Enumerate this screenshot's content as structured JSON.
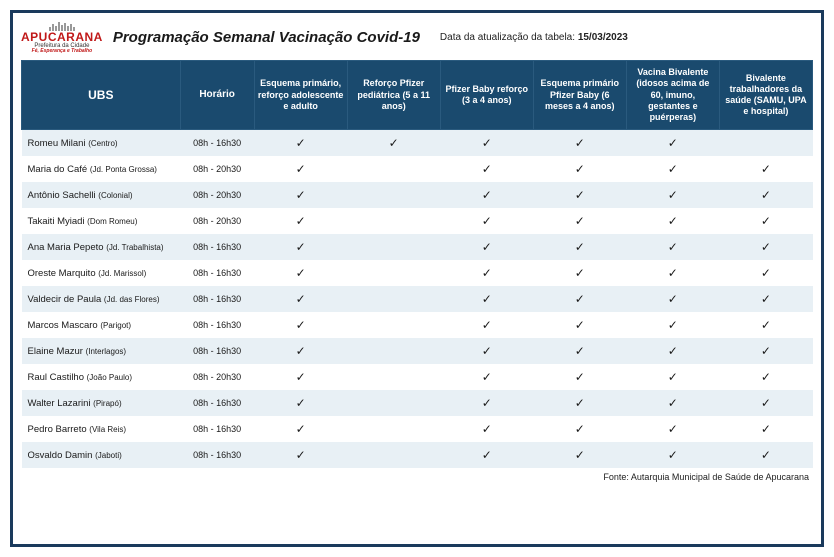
{
  "header": {
    "logo": {
      "city": "APUCARANA",
      "sub": "Prefeitura da Cidade",
      "motto": "Fé, Esperança e Trabalho"
    },
    "title": "Programação Semanal Vacinação Covid-19",
    "update_label": "Data da atualização da tabela: ",
    "update_date": "15/03/2023"
  },
  "table": {
    "columns": [
      "UBS",
      "Horário",
      "Esquema primário, reforço adolescente e adulto",
      "Reforço Pfizer pediátrica        (5 a 11 anos)",
      "Pfizer Baby reforço (3 a 4 anos)",
      "Esquema primário Pfizer Baby (6 meses a 4 anos)",
      "Vacina Bivalente (idosos acima de 60, imuno, gestantes e puérperas)",
      "Bivalente trabalhadores da saúde (SAMU, UPA e hospital)"
    ],
    "rows": [
      {
        "ubs": "Romeu Milani",
        "loc": "(Centro)",
        "horario": "08h - 16h30",
        "v": [
          true,
          true,
          true,
          true,
          true,
          false
        ]
      },
      {
        "ubs": "Maria do Café",
        "loc": "(Jd. Ponta Grossa)",
        "horario": "08h - 20h30",
        "v": [
          true,
          false,
          true,
          true,
          true,
          true
        ]
      },
      {
        "ubs": "Antônio Sachelli",
        "loc": "(Colonial)",
        "horario": "08h - 20h30",
        "v": [
          true,
          false,
          true,
          true,
          true,
          true
        ]
      },
      {
        "ubs": "Takaiti Myiadi",
        "loc": "(Dom Romeu)",
        "horario": "08h - 20h30",
        "v": [
          true,
          false,
          true,
          true,
          true,
          true
        ]
      },
      {
        "ubs": "Ana Maria Pepeto",
        "loc": "(Jd. Trabalhista)",
        "horario": "08h - 16h30",
        "v": [
          true,
          false,
          true,
          true,
          true,
          true
        ]
      },
      {
        "ubs": "Oreste Marquito",
        "loc": "(Jd. Marissol)",
        "horario": "08h - 16h30",
        "v": [
          true,
          false,
          true,
          true,
          true,
          true
        ]
      },
      {
        "ubs": "Valdecir de Paula",
        "loc": "(Jd. das Flores)",
        "horario": "08h - 16h30",
        "v": [
          true,
          false,
          true,
          true,
          true,
          true
        ]
      },
      {
        "ubs": "Marcos Mascaro",
        "loc": "(Parigot)",
        "horario": "08h - 16h30",
        "v": [
          true,
          false,
          true,
          true,
          true,
          true
        ]
      },
      {
        "ubs": "Elaine Mazur",
        "loc": "(Interlagos)",
        "horario": "08h - 16h30",
        "v": [
          true,
          false,
          true,
          true,
          true,
          true
        ]
      },
      {
        "ubs": "Raul Castilho",
        "loc": "(João Paulo)",
        "horario": "08h - 20h30",
        "v": [
          true,
          false,
          true,
          true,
          true,
          true
        ]
      },
      {
        "ubs": "Walter Lazarini",
        "loc": "(Pirapó)",
        "horario": "08h - 16h30",
        "v": [
          true,
          false,
          true,
          true,
          true,
          true
        ]
      },
      {
        "ubs": "Pedro Barreto",
        "loc": "(Vila Reis)",
        "horario": "08h - 16h30",
        "v": [
          true,
          false,
          true,
          true,
          true,
          true
        ]
      },
      {
        "ubs": "Osvaldo Damin",
        "loc": "(Jaboti)",
        "horario": "08h - 16h30",
        "v": [
          true,
          false,
          true,
          true,
          true,
          true
        ]
      }
    ]
  },
  "footer": {
    "source": "Fonte: Autarquia Municipal de Saúde de Apucarana"
  },
  "styling": {
    "frame_border_color": "#1a3a5c",
    "header_bg": "#1a4a6e",
    "header_text_color": "#ffffff",
    "row_even_bg": "#e8f0f5",
    "row_odd_bg": "#ffffff",
    "text_color": "#1a1a1a",
    "checkmark": "✓",
    "title_fontsize": 15,
    "header_cell_fontsize": 9,
    "body_cell_fontsize": 9
  }
}
